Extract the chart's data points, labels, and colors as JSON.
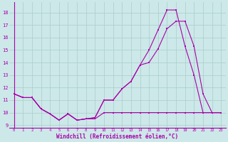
{
  "xlabel": "Windchill (Refroidissement éolien,°C)",
  "bg_color": "#cce8e8",
  "grid_color": "#aacccc",
  "line_color": "#aa00aa",
  "xlim": [
    -0.5,
    23.5
  ],
  "ylim": [
    8.8,
    18.8
  ],
  "yticks": [
    9,
    10,
    11,
    12,
    13,
    14,
    15,
    16,
    17,
    18
  ],
  "xticks": [
    0,
    1,
    2,
    3,
    4,
    5,
    6,
    7,
    8,
    9,
    10,
    11,
    12,
    13,
    14,
    15,
    16,
    17,
    18,
    19,
    20,
    21,
    22,
    23
  ],
  "line1_x": [
    0,
    1,
    2,
    3,
    4,
    5,
    6,
    7,
    8,
    9,
    10,
    11,
    12,
    13,
    14,
    15,
    16,
    17,
    18,
    19,
    20,
    21,
    22,
    23
  ],
  "line1_y": [
    11.5,
    11.2,
    11.2,
    10.3,
    9.9,
    9.4,
    9.9,
    9.4,
    9.5,
    9.6,
    11.0,
    11.0,
    11.9,
    12.5,
    13.8,
    14.0,
    15.1,
    16.7,
    17.3,
    17.3,
    15.3,
    11.5,
    10.0,
    10.0
  ],
  "line2_x": [
    0,
    1,
    2,
    3,
    4,
    5,
    6,
    7,
    8,
    9,
    10,
    11,
    12,
    13,
    14,
    15,
    16,
    17,
    18,
    19,
    20,
    21,
    22,
    23
  ],
  "line2_y": [
    11.5,
    11.2,
    11.2,
    10.3,
    9.9,
    9.4,
    9.9,
    9.4,
    9.5,
    9.6,
    11.0,
    11.0,
    11.9,
    12.5,
    13.8,
    15.0,
    16.6,
    18.2,
    18.2,
    15.3,
    13.0,
    10.0,
    10.0,
    10.0
  ],
  "line3_x": [
    0,
    1,
    2,
    3,
    4,
    5,
    6,
    7,
    8,
    9,
    10,
    11,
    12,
    13,
    14,
    15,
    16,
    17,
    18,
    19,
    20,
    21,
    22,
    23
  ],
  "line3_y": [
    11.5,
    11.2,
    11.2,
    10.3,
    9.9,
    9.4,
    9.9,
    9.4,
    9.5,
    9.5,
    10.0,
    10.0,
    10.0,
    10.0,
    10.0,
    10.0,
    10.0,
    10.0,
    10.0,
    10.0,
    10.0,
    10.0,
    10.0,
    10.0
  ]
}
